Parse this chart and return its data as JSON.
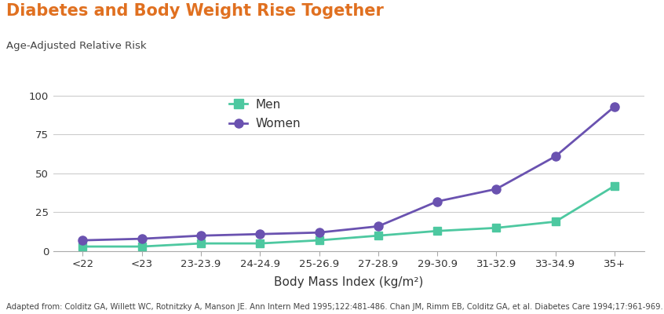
{
  "title": "Diabetes and Body Weight Rise Together",
  "subtitle": "Age-Adjusted Relative Risk",
  "xlabel": "Body Mass Index (kg/m²)",
  "footnote": "Adapted from: Colditz GA, Willett WC, Rotnitzky A, Manson JE. Ann Intern Med 1995;122:481-486. Chan JM, Rimm EB, Colditz GA, et al. Diabetes Care 1994;17:961-969.",
  "categories": [
    "<22",
    "<23",
    "23-23.9",
    "24-24.9",
    "25-26.9",
    "27-28.9",
    "29-30.9",
    "31-32.9",
    "33-34.9",
    "35+"
  ],
  "men_values": [
    3,
    3,
    5,
    5,
    7,
    10,
    13,
    15,
    19,
    42
  ],
  "women_values": [
    7,
    8,
    10,
    11,
    12,
    16,
    32,
    40,
    61,
    93
  ],
  "men_color": "#4dc8a0",
  "women_color": "#6a52b0",
  "title_color": "#e07020",
  "subtitle_color": "#444444",
  "footnote_color": "#444444",
  "bg_color": "#ffffff",
  "grid_color": "#cccccc",
  "ylim": [
    0,
    105
  ],
  "yticks": [
    0,
    25,
    50,
    75,
    100
  ],
  "title_fontsize": 15,
  "subtitle_fontsize": 9.5,
  "label_fontsize": 11,
  "tick_fontsize": 9.5,
  "legend_fontsize": 11,
  "footnote_fontsize": 7.2
}
